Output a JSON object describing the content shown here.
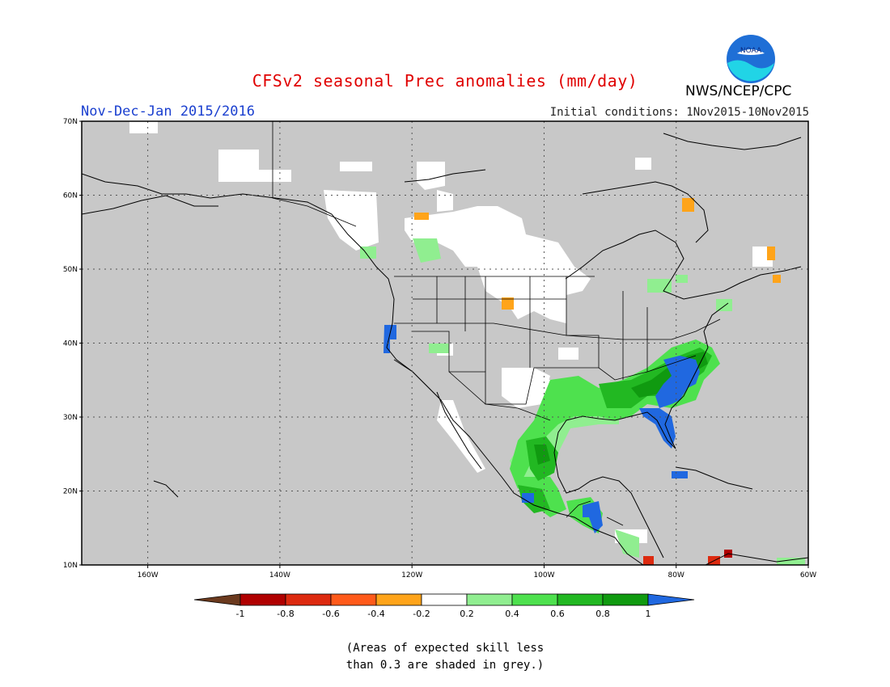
{
  "title": "CFSv2 seasonal Prec anomalies (mm/day)",
  "period": "Nov-Dec-Jan 2015/2016",
  "initial_conditions": "Initial conditions: 1Nov2015-10Nov2015",
  "org": "NWS/NCEP/CPC",
  "logo_text": "NOAA",
  "note_line1": "(Areas of expected skill less",
  "note_line2": "than 0.3 are shaded in grey.)",
  "map": {
    "lon_range": [
      -170,
      -60
    ],
    "lat_range": [
      10,
      70
    ],
    "lat_labels": [
      "70N",
      "60N",
      "50N",
      "40N",
      "30N",
      "20N",
      "10N"
    ],
    "lat_values": [
      70,
      60,
      50,
      40,
      30,
      20,
      10
    ],
    "lon_labels": [
      "160W",
      "140W",
      "120W",
      "100W",
      "80W",
      "60W"
    ],
    "lon_values": [
      -160,
      -140,
      -120,
      -100,
      -80,
      -60
    ],
    "background_color": "#c8c8c8",
    "coast_color": "#000000"
  },
  "colorbar": {
    "labels": [
      "-1",
      "-0.8",
      "-0.6",
      "-0.4",
      "-0.2",
      "0.2",
      "0.4",
      "0.6",
      "0.8",
      "1"
    ],
    "colors": [
      "#6b3a1e",
      "#b00000",
      "#dd2a10",
      "#ff5a1a",
      "#ffa41a",
      "#ffffff",
      "#90ee90",
      "#4ee14e",
      "#22b822",
      "#109a10",
      "#2068e0"
    ]
  }
}
